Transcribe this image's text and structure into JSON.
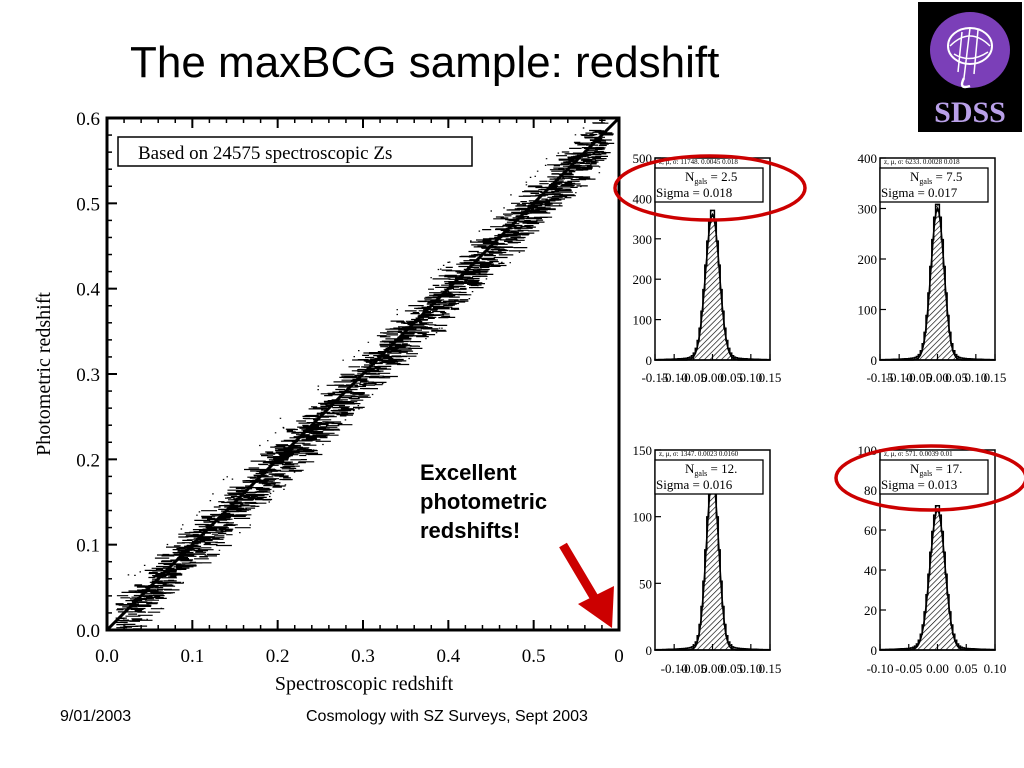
{
  "slide": {
    "title": "The maxBCG sample: redshift",
    "callout_lines": [
      "Excellent",
      "photometric",
      "redshifts!"
    ],
    "footer_date": "9/01/2003",
    "footer_conference": "Cosmology with SZ Surveys, Sept 2003",
    "logo_text": "SDSS",
    "colors": {
      "highlight_ellipse": "#cc0000",
      "arrow": "#cc0000",
      "logo_bg": "#000000",
      "logo_disc": "#7b3fb8",
      "logo_text": "#b9a0e8"
    }
  },
  "chart_data": [
    {
      "type": "scatter",
      "annotation": "Based on 24575 spectroscopic Zs",
      "xlabel": "Spectroscopic redshift",
      "ylabel": "Photometric redshift",
      "xlim": [
        0.0,
        0.6
      ],
      "ylim": [
        0.0,
        0.6
      ],
      "xticks": [
        "0.0",
        "0.1",
        "0.2",
        "0.3",
        "0.4",
        "0.5",
        "0"
      ],
      "yticks": [
        "0.0",
        "0.1",
        "0.2",
        "0.3",
        "0.4",
        "0.5",
        "0.6"
      ],
      "reference_line": {
        "x": [
          0.0,
          0.6
        ],
        "y": [
          0.0,
          0.6
        ]
      }
    },
    {
      "type": "bar",
      "header": "z, μ, σ: 11748. 0.0045 0.018",
      "ngals_label": "N",
      "ngals_sub": "gals",
      "ngals_value": "= 2.5",
      "sigma_label": "Sigma = 0.018",
      "highlighted": true,
      "xlim": [
        -0.15,
        0.15
      ],
      "ylim": [
        0,
        500
      ],
      "xticks": [
        "-0.15",
        "-0.10",
        "-0.05",
        "0.00",
        "0.05",
        "0.10",
        "0.15"
      ],
      "yticks": [
        "0",
        "100",
        "200",
        "300",
        "400",
        "500"
      ],
      "peak": 360,
      "center": 0.0,
      "width": 0.018
    },
    {
      "type": "bar",
      "header": "z, μ, σ: 6233. 0.0028 0.018",
      "ngals_label": "N",
      "ngals_sub": "gals",
      "ngals_value": "= 7.5",
      "sigma_label": "Sigma = 0.017",
      "highlighted": false,
      "xlim": [
        -0.15,
        0.15
      ],
      "ylim": [
        0,
        400
      ],
      "xticks": [
        "-0.15",
        "-0.10",
        "-0.05",
        "0.00",
        "0.05",
        "0.10",
        "0.15"
      ],
      "yticks": [
        "0",
        "100",
        "200",
        "300",
        "400"
      ],
      "peak": 300,
      "center": 0.0,
      "width": 0.017
    },
    {
      "type": "bar",
      "header": "z, μ, σ: 1347. 0.0023 0.0160",
      "ngals_label": "N",
      "ngals_sub": "gals",
      "ngals_value": "= 12.",
      "sigma_label": "Sigma = 0.016",
      "highlighted": false,
      "xlim": [
        -0.15,
        0.15
      ],
      "ylim": [
        0,
        150
      ],
      "xticks": [
        "-0.10",
        "-0.05",
        "0.00",
        "0.05",
        "0.10",
        "0.15"
      ],
      "yticks": [
        "0",
        "50",
        "100",
        "150"
      ],
      "peak": 130,
      "center": 0.0,
      "width": 0.016
    },
    {
      "type": "bar",
      "header": "z, μ, σ: 571. 0.0039 0.01",
      "ngals_label": "N",
      "ngals_sub": "gals",
      "ngals_value": "= 17.",
      "sigma_label": "Sigma = 0.013",
      "highlighted": true,
      "xlim": [
        -0.1,
        0.1
      ],
      "ylim": [
        0,
        100
      ],
      "xticks": [
        "-0.10",
        "-0.05",
        "0.00",
        "0.05",
        "0.10"
      ],
      "yticks": [
        "0",
        "20",
        "40",
        "60",
        "80",
        "100"
      ],
      "peak": 70,
      "center": 0.0,
      "width": 0.013
    }
  ]
}
